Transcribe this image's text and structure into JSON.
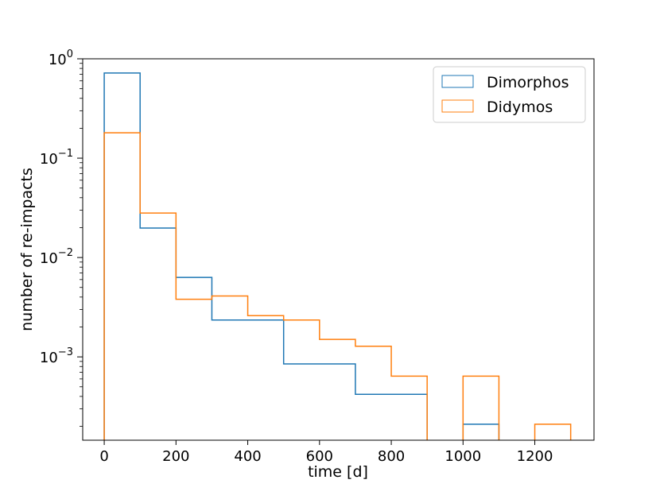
{
  "chart_data": {
    "type": "histogram",
    "xlabel": "time [d]",
    "ylabel": "number of re-impacts",
    "y_scale": "log",
    "xlim": [
      -60,
      1365
    ],
    "ylim": [
      0.000145,
      1.0
    ],
    "x_ticks": [
      0,
      200,
      400,
      600,
      800,
      1000,
      1200
    ],
    "x_tick_labels": [
      "0",
      "200",
      "400",
      "600",
      "800",
      "1000",
      "1200"
    ],
    "y_ticks": [
      {
        "value": 1,
        "base": "10",
        "exp": "0"
      },
      {
        "value": 0.1,
        "base": "10",
        "exp": "−1"
      },
      {
        "value": 0.01,
        "base": "10",
        "exp": "−2"
      },
      {
        "value": 0.001,
        "base": "10",
        "exp": "−3"
      }
    ],
    "grid": false,
    "legend_position": "top-right",
    "bin_edges": [
      0,
      100,
      200,
      300,
      400,
      500,
      600,
      700,
      800,
      900,
      1000,
      1100,
      1200,
      1300
    ],
    "series": [
      {
        "name": "Dimorphos",
        "color": "#1f77b4",
        "values": [
          0.72,
          0.0198,
          0.0063,
          0.00235,
          0.00235,
          0.00085,
          0.00085,
          0.00042,
          0.00042,
          0,
          0.00021,
          0,
          0
        ]
      },
      {
        "name": "Didymos",
        "color": "#ff7f0e",
        "values": [
          0.18,
          0.028,
          0.0038,
          0.0041,
          0.0026,
          0.00235,
          0.0015,
          0.00128,
          0.00064,
          0,
          0.00064,
          0,
          0.00021
        ]
      }
    ]
  }
}
